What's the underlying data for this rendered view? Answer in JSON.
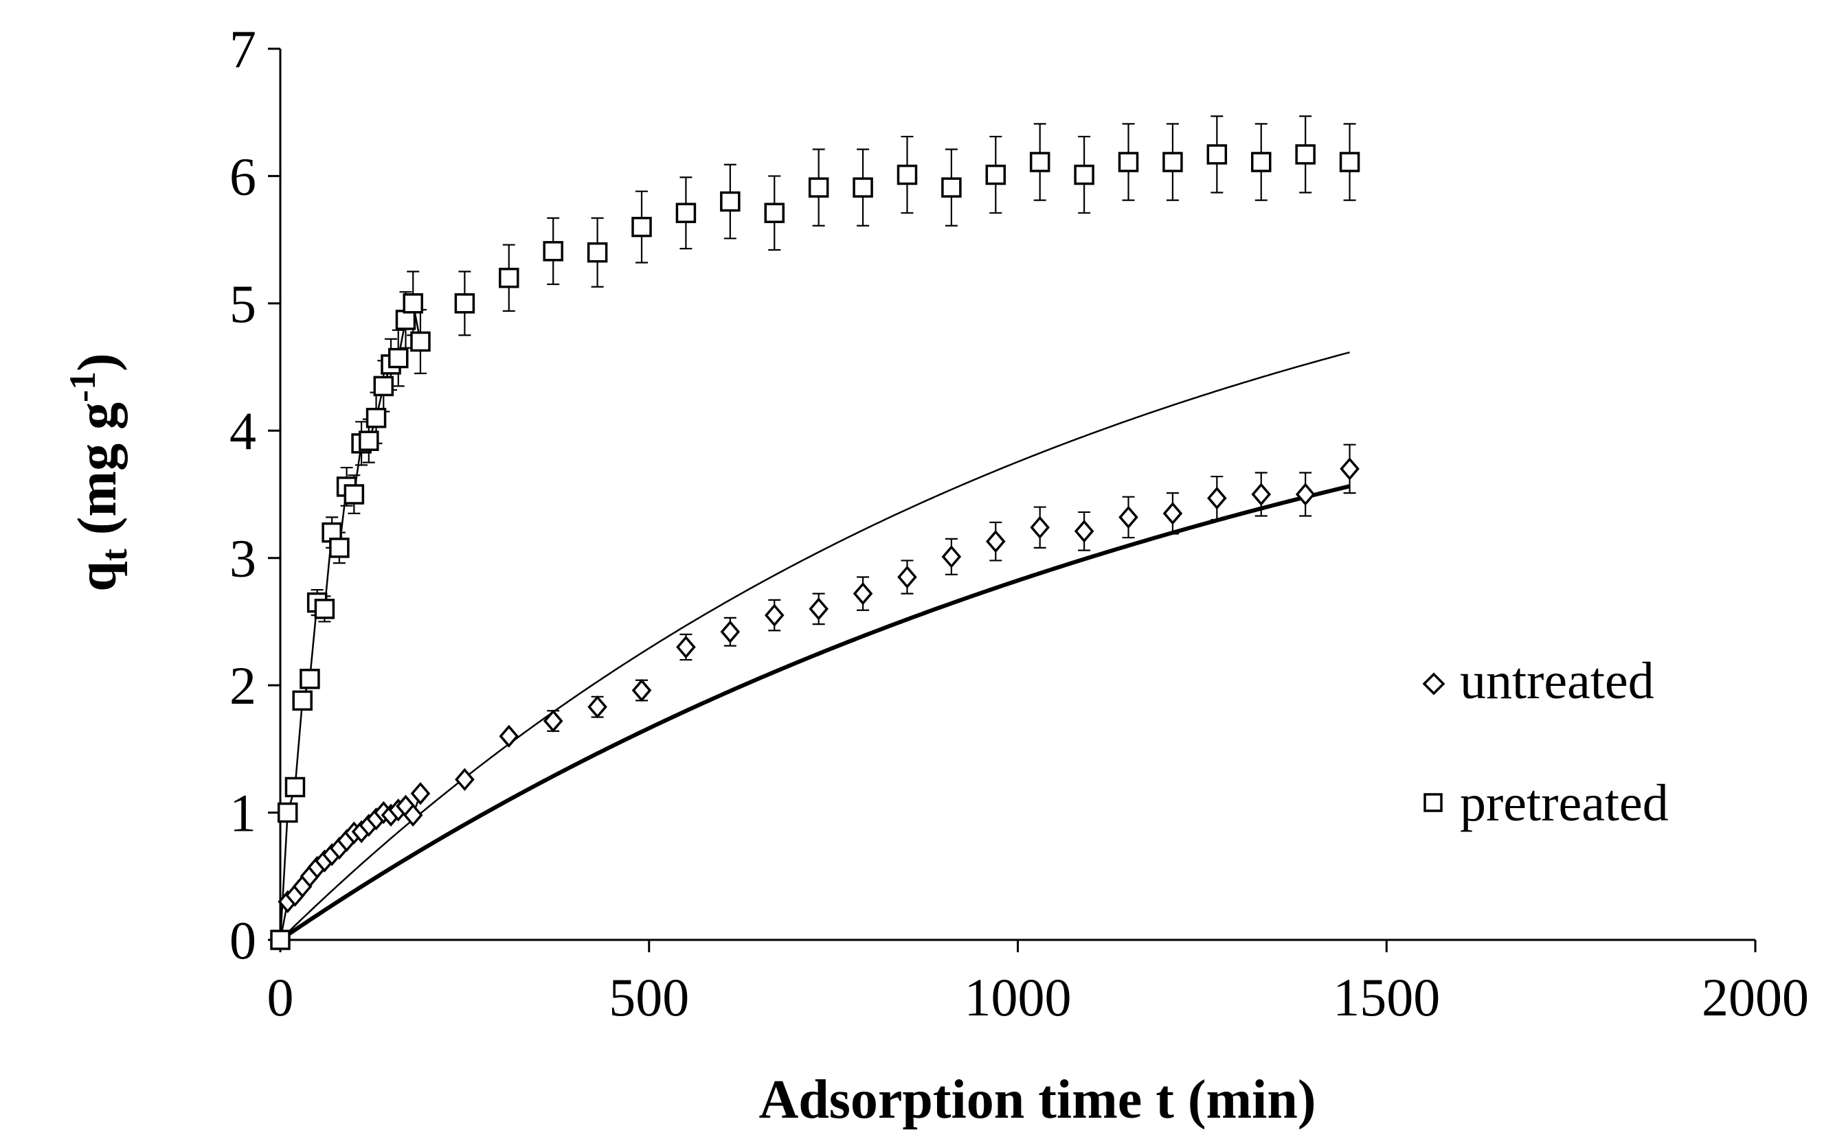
{
  "chart_data": {
    "type": "scatter",
    "title": "",
    "xlabel": "Adsorption time t (min)",
    "ylabel_main": "q",
    "ylabel_sub": "t",
    "ylabel_rest": " (mg g",
    "ylabel_sup": "-1",
    "ylabel_close": ")",
    "xlim": [
      0,
      2000
    ],
    "ylim": [
      0,
      7
    ],
    "xticks": [
      0,
      500,
      1000,
      1500,
      2000
    ],
    "yticks": [
      0,
      1,
      2,
      3,
      4,
      5,
      6,
      7
    ],
    "grid": false,
    "legend_position": "right",
    "series": [
      {
        "name": "untreated",
        "marker": "diamond",
        "fit_line": "thick",
        "fit": {
          "qe": 5.5,
          "k": 0.00072
        },
        "x": [
          0,
          10,
          20,
          30,
          40,
          50,
          60,
          70,
          80,
          90,
          100,
          110,
          120,
          130,
          140,
          150,
          160,
          170,
          180,
          190,
          250,
          310,
          370,
          430,
          490,
          550,
          610,
          670,
          730,
          790,
          850,
          910,
          970,
          1030,
          1090,
          1150,
          1210,
          1270,
          1330,
          1390,
          1450
        ],
        "y": [
          0,
          0.3,
          0.35,
          0.42,
          0.5,
          0.57,
          0.62,
          0.67,
          0.72,
          0.78,
          0.84,
          0.85,
          0.9,
          0.95,
          1.0,
          0.98,
          1.02,
          1.05,
          0.98,
          1.15,
          1.26,
          1.6,
          1.72,
          1.83,
          1.96,
          2.3,
          2.42,
          2.55,
          2.6,
          2.72,
          2.85,
          3.01,
          3.13,
          3.24,
          3.21,
          3.32,
          3.35,
          3.47,
          3.5,
          3.5,
          3.7
        ],
        "err": [
          0,
          0,
          0,
          0,
          0,
          0,
          0,
          0,
          0,
          0,
          0,
          0,
          0,
          0,
          0,
          0,
          0,
          0,
          0,
          0,
          0,
          0,
          0.08,
          0.08,
          0.08,
          0.1,
          0.11,
          0.12,
          0.12,
          0.13,
          0.13,
          0.14,
          0.15,
          0.16,
          0.15,
          0.16,
          0.16,
          0.17,
          0.17,
          0.17,
          0.19
        ]
      },
      {
        "name": "pretreated",
        "marker": "square",
        "fit_line": "thin",
        "fit": {
          "qe": 6.35,
          "k": 0.000895
        },
        "x": [
          0,
          10,
          20,
          30,
          40,
          50,
          60,
          70,
          80,
          90,
          100,
          110,
          120,
          130,
          140,
          150,
          160,
          170,
          180,
          190,
          250,
          310,
          370,
          430,
          490,
          550,
          610,
          670,
          730,
          790,
          850,
          910,
          970,
          1030,
          1090,
          1150,
          1210,
          1270,
          1330,
          1390,
          1450
        ],
        "y": [
          0,
          1.0,
          1.2,
          1.88,
          2.05,
          2.65,
          2.6,
          3.2,
          3.08,
          3.56,
          3.5,
          3.9,
          3.92,
          4.1,
          4.35,
          4.52,
          4.57,
          4.87,
          5.0,
          4.7,
          5.0,
          5.2,
          5.41,
          5.4,
          5.6,
          5.71,
          5.8,
          5.71,
          5.91,
          5.91,
          6.01,
          5.91,
          6.01,
          6.11,
          6.01,
          6.11,
          6.11,
          6.17,
          6.11,
          6.17,
          6.11
        ],
        "err": [
          0,
          0,
          0,
          0,
          0,
          0.1,
          0.1,
          0.12,
          0.12,
          0.15,
          0.15,
          0.17,
          0.17,
          0.2,
          0.2,
          0.2,
          0.22,
          0.22,
          0.25,
          0.25,
          0.25,
          0.26,
          0.26,
          0.27,
          0.28,
          0.28,
          0.29,
          0.29,
          0.3,
          0.3,
          0.3,
          0.3,
          0.3,
          0.3,
          0.3,
          0.3,
          0.3,
          0.3,
          0.3,
          0.3,
          0.3
        ]
      }
    ]
  }
}
